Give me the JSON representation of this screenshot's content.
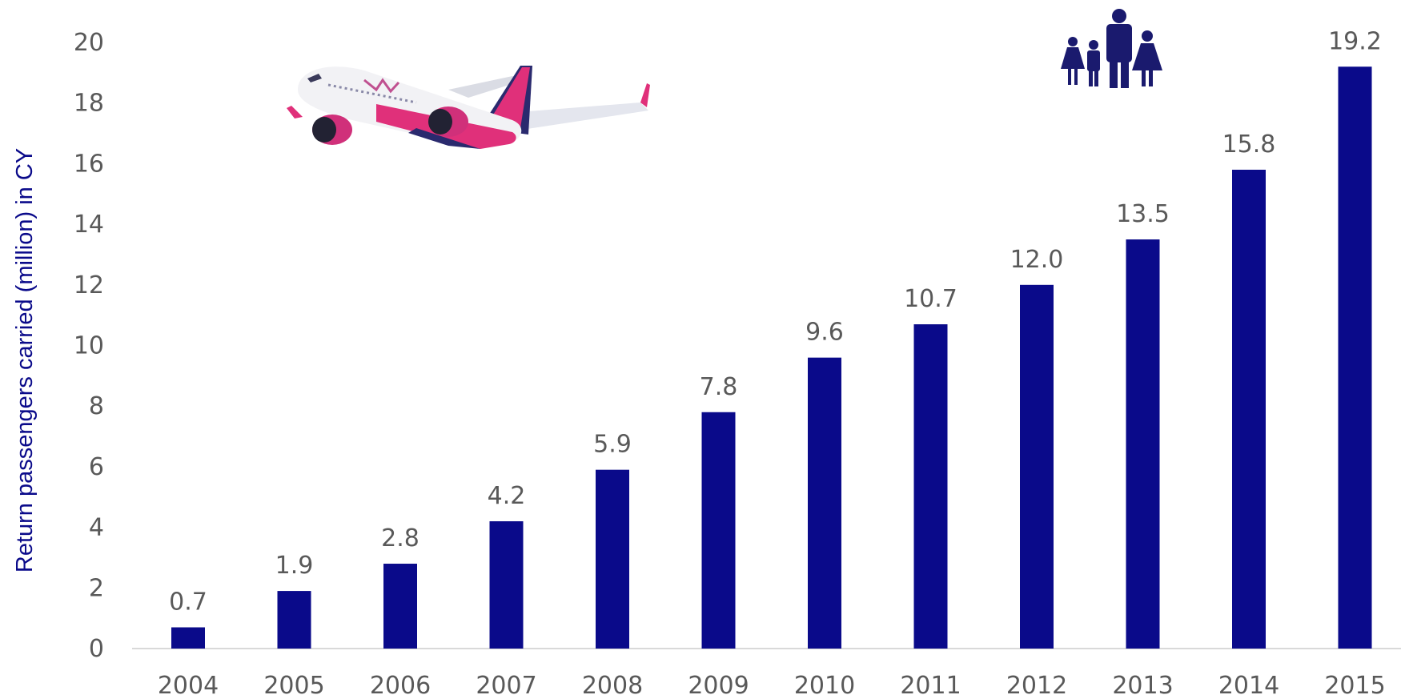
{
  "chart_data": {
    "type": "bar",
    "categories": [
      "2004",
      "2005",
      "2006",
      "2007",
      "2008",
      "2009",
      "2010",
      "2011",
      "2012",
      "2013",
      "2014",
      "2015"
    ],
    "values": [
      0.7,
      1.9,
      2.8,
      4.2,
      5.9,
      7.8,
      9.6,
      10.7,
      12.0,
      13.5,
      15.8,
      19.2
    ],
    "value_labels": [
      "0.7",
      "1.9",
      "2.8",
      "4.2",
      "5.9",
      "7.8",
      "9.6",
      "10.7",
      "12.0",
      "13.5",
      "15.8",
      "19.2"
    ],
    "title": "",
    "xlabel": "",
    "ylabel": "Return passengers carried (million) in CY",
    "ylim": [
      0,
      20
    ],
    "yticks": [
      "0",
      "2",
      "4",
      "6",
      "8",
      "10",
      "12",
      "14",
      "16",
      "18",
      "20"
    ],
    "grid": false,
    "legend": "none",
    "colors": {
      "bar": "#0a0a8a",
      "axis_title": "#0a0a8a",
      "tick_text": "#595959",
      "axis_line": "#d9d9d9",
      "airplane_body": "#f2f2f5",
      "airplane_tail_pink": "#e0307a",
      "airplane_tail_navy": "#2a2a6e",
      "people_icon": "#1a1a6e"
    }
  },
  "decorations": {
    "airplane": "airplane-icon",
    "family": "family-icon"
  }
}
